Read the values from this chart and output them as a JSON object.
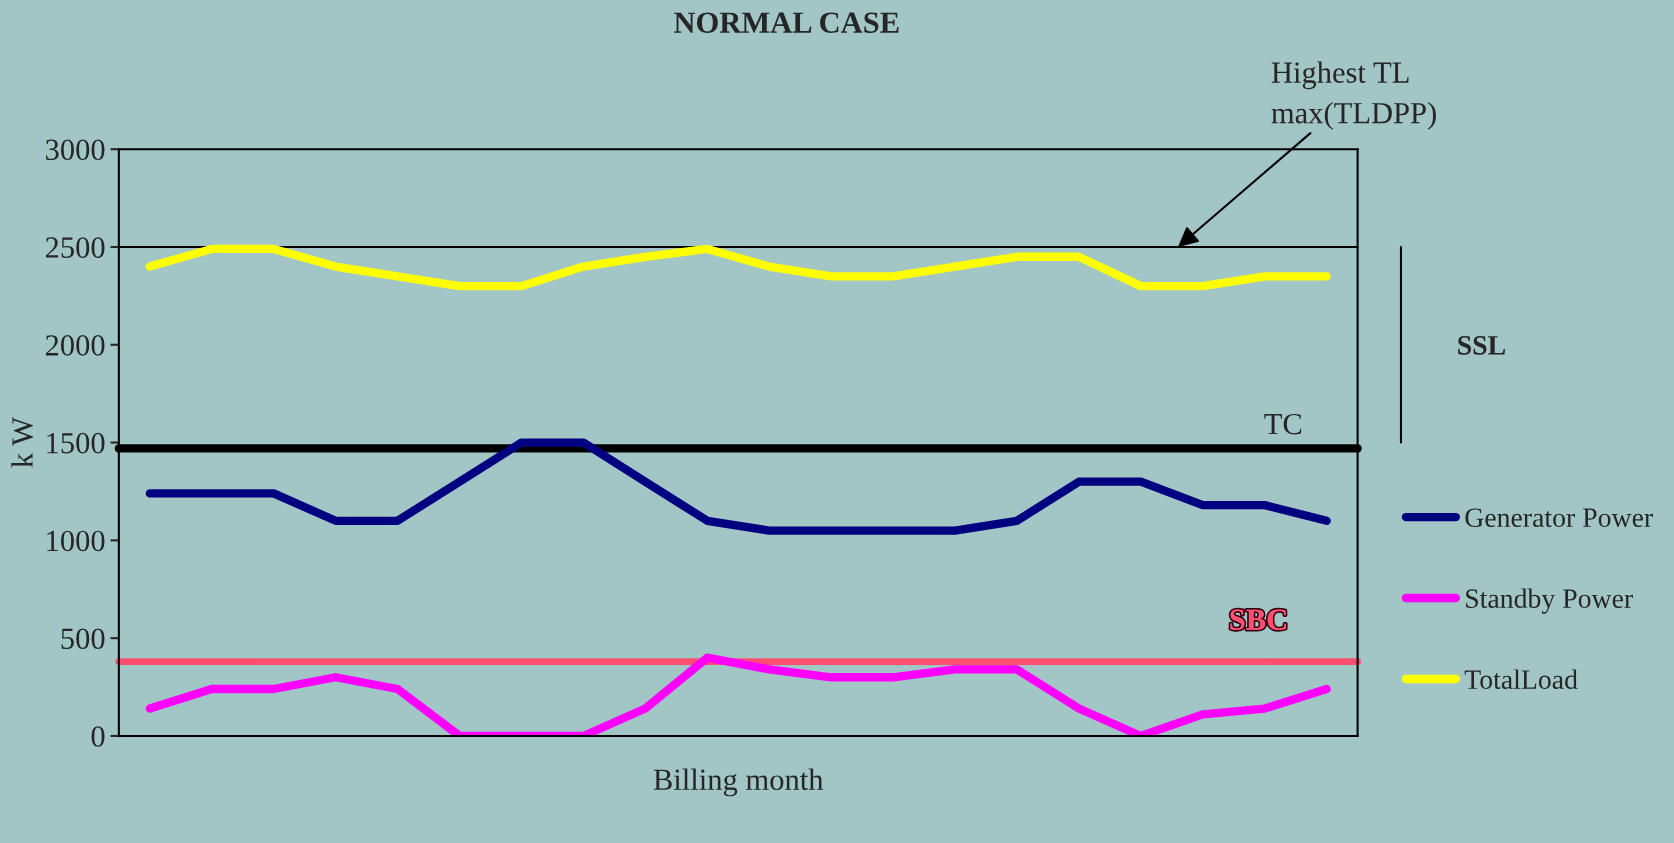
{
  "chart_data": {
    "type": "line",
    "title": "NORMAL CASE",
    "xlabel": "Billing month",
    "ylabel": "k W",
    "categories": [
      null,
      null,
      null,
      null,
      null,
      null,
      null,
      null,
      null,
      null,
      null,
      null,
      null,
      null,
      null,
      null,
      null,
      null,
      null,
      null
    ],
    "series": [
      {
        "name": "Generator Power",
        "color": "#000080",
        "values": [
          1240,
          1240,
          1240,
          1100,
          1100,
          1300,
          1500,
          1500,
          1300,
          1100,
          1050,
          1050,
          1050,
          1050,
          1100,
          1300,
          1300,
          1180,
          1180,
          1100
        ]
      },
      {
        "name": "Standby Power",
        "color": "#ff00ff",
        "values": [
          140,
          240,
          240,
          300,
          240,
          0,
          0,
          0,
          140,
          400,
          340,
          300,
          300,
          340,
          340,
          140,
          0,
          110,
          140,
          240
        ]
      },
      {
        "name": "TotalLoad",
        "color": "#ffff00",
        "values": [
          2400,
          2490,
          2490,
          2400,
          2350,
          2300,
          2300,
          2400,
          2450,
          2490,
          2400,
          2350,
          2350,
          2400,
          2450,
          2450,
          2300,
          2300,
          2350,
          2350
        ]
      }
    ],
    "ylim": [
      0,
      3000
    ],
    "yticks": [
      0,
      500,
      1000,
      1500,
      2000,
      2500,
      3000
    ],
    "ref_lines": [
      {
        "axis": "y",
        "value": 2500,
        "label": "Highest TL\nmax(TLDPP)",
        "color": "#000000"
      },
      {
        "axis": "y",
        "value": 1470,
        "label": "TC",
        "color": "#000000"
      },
      {
        "axis": "y",
        "value": 380,
        "label": "SBC",
        "color": "#ff4f70"
      }
    ],
    "annotations": [
      "SSL"
    ],
    "grid": false,
    "legend": "right",
    "marker": "none",
    "line_style": "solid"
  }
}
